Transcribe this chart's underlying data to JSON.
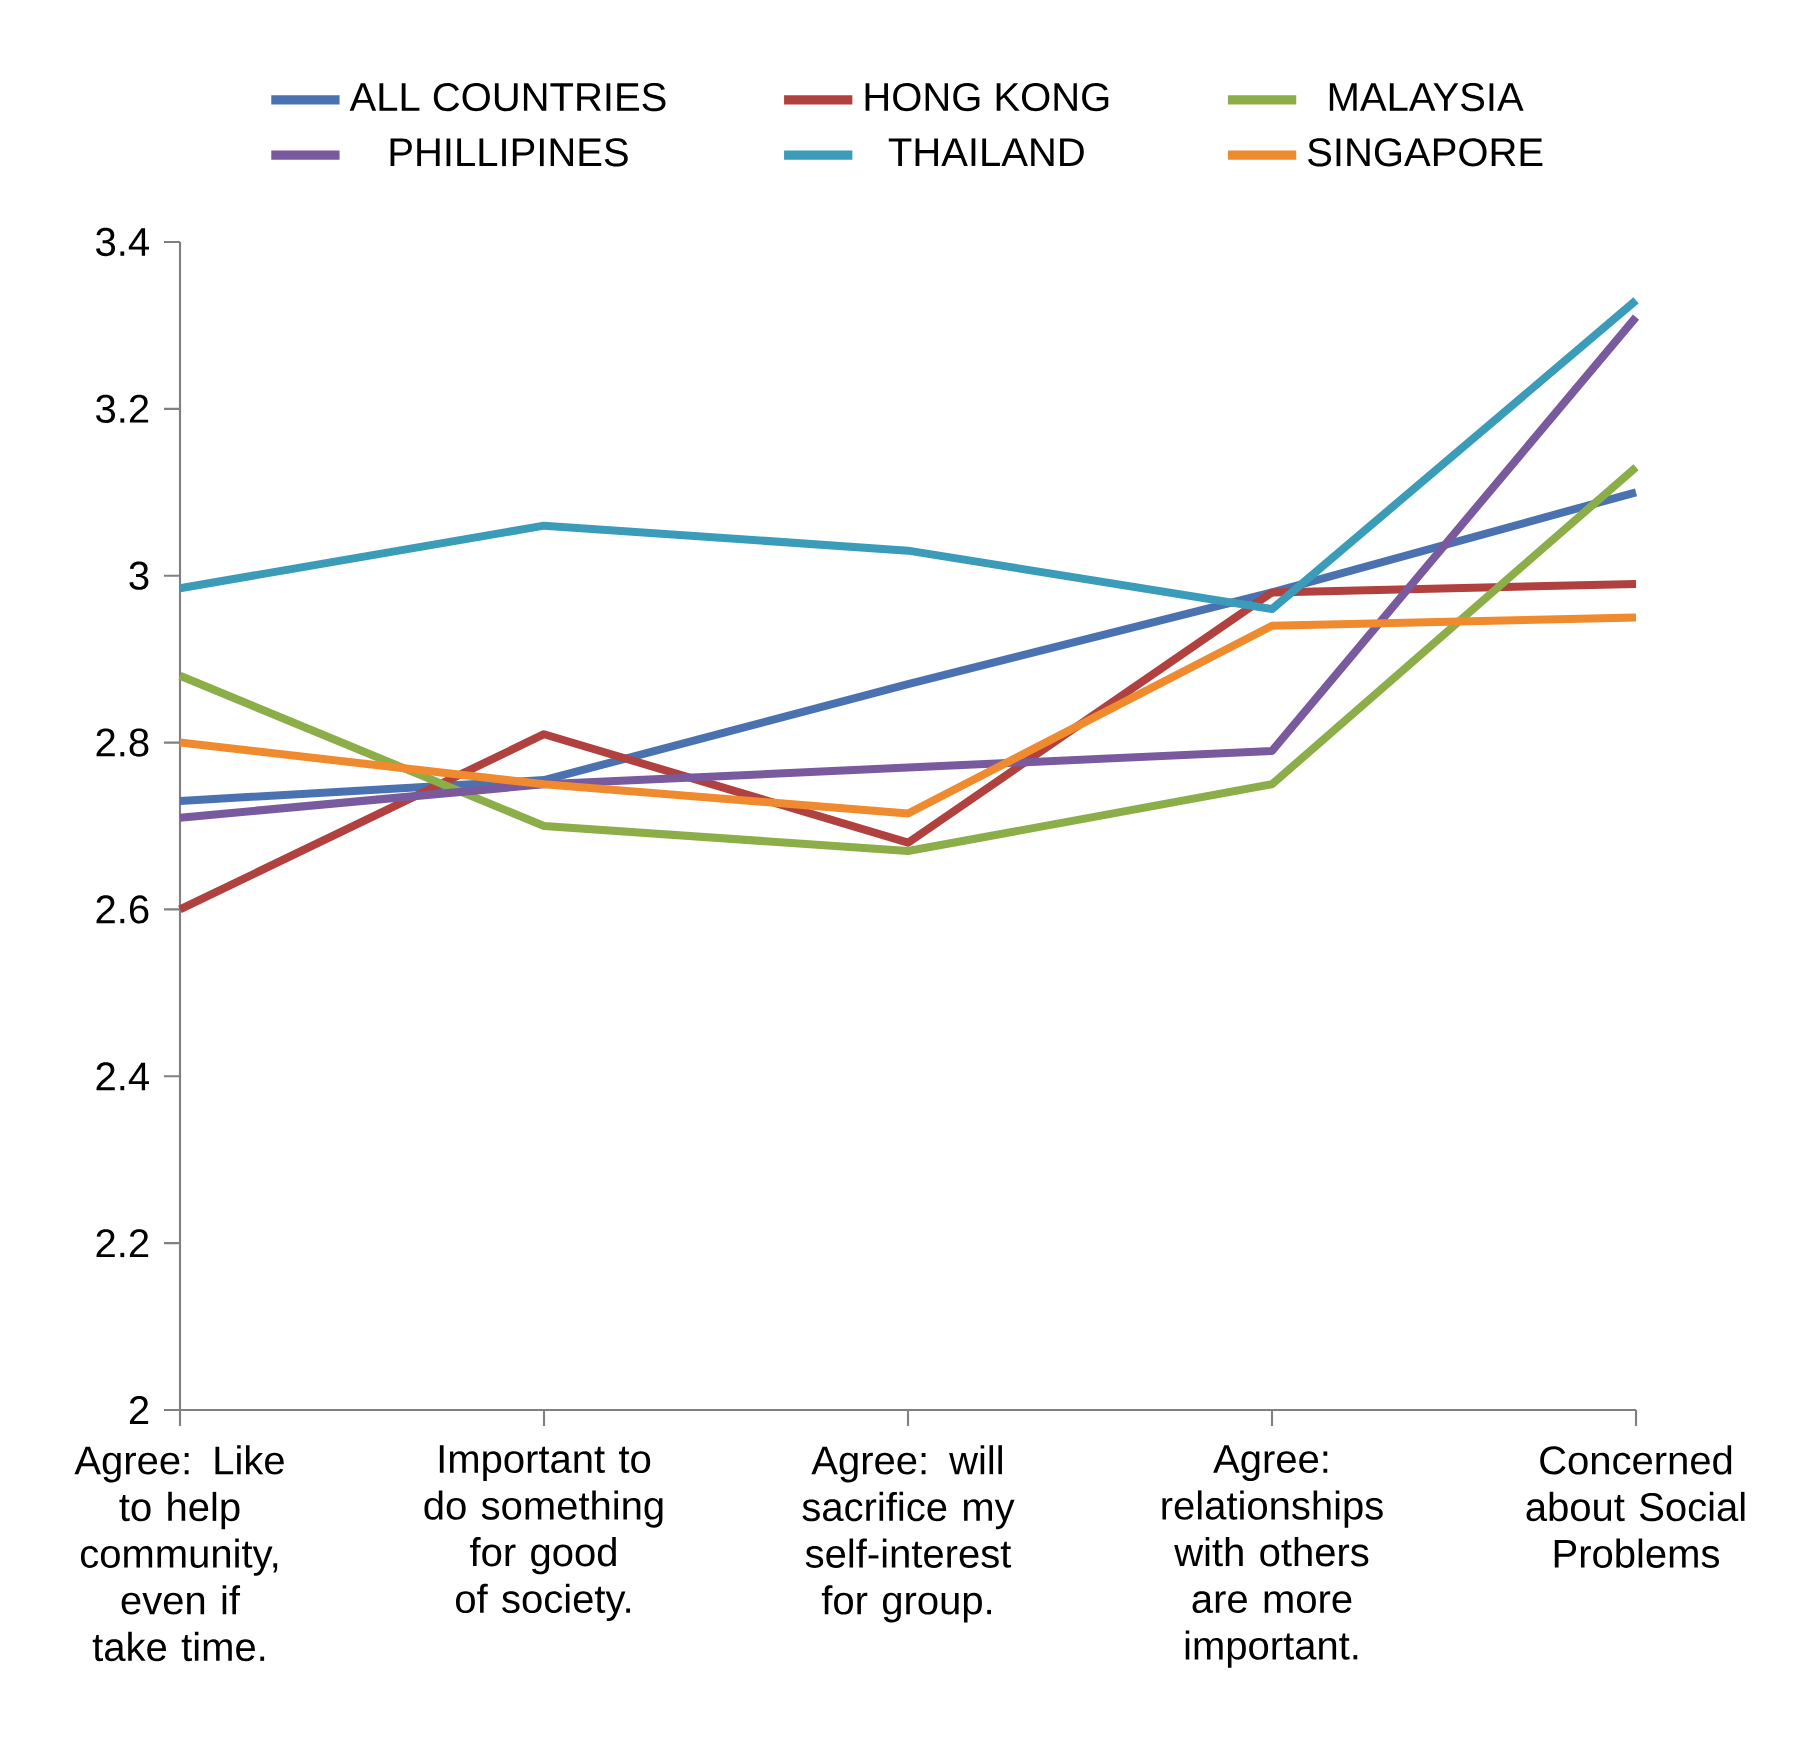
{
  "chart_data": {
    "type": "line",
    "categories": [
      "Agree: Like to help community, even if take time.",
      "Important to do something for good of society.",
      "Agree: will sacrifice my self-interest for group.",
      "Agree: relationships with others are more important.",
      "Concerned about Social Problems"
    ],
    "series": [
      {
        "name": "ALL COUNTRIES",
        "color": "#4a72b0",
        "values": [
          2.73,
          2.755,
          2.87,
          2.98,
          3.1
        ]
      },
      {
        "name": "HONG KONG",
        "color": "#b0413e",
        "values": [
          2.6,
          2.81,
          2.68,
          2.98,
          2.99
        ]
      },
      {
        "name": "MALAYSIA",
        "color": "#8cae48",
        "values": [
          2.88,
          2.7,
          2.67,
          2.75,
          3.13
        ]
      },
      {
        "name": "PHILLIPINES",
        "color": "#7a5a9e",
        "values": [
          2.71,
          2.75,
          2.77,
          2.79,
          3.31
        ]
      },
      {
        "name": "THAILAND",
        "color": "#3a9cb8",
        "values": [
          2.985,
          3.06,
          3.03,
          2.96,
          3.33
        ]
      },
      {
        "name": "SINGAPORE",
        "color": "#f08a2e",
        "values": [
          2.8,
          2.75,
          2.715,
          2.94,
          2.95
        ]
      }
    ],
    "ylim": [
      2,
      3.4
    ],
    "yticks": [
      2,
      2.2,
      2.4,
      2.6,
      2.8,
      3,
      3.2,
      3.4
    ],
    "legend": "top",
    "marker": "none",
    "line_style": "solid",
    "grid": false
  }
}
